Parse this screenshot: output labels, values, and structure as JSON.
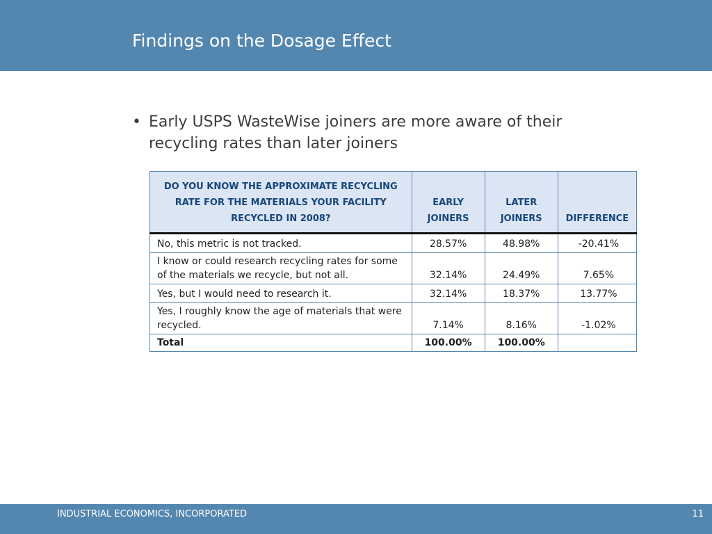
{
  "slide": {
    "title": "Findings on the Dosage Effect",
    "bullet_symbol": "•",
    "bullet_text": "Early USPS WasteWise joiners are more aware of their recycling rates than later joiners"
  },
  "table": {
    "headers": [
      "DO YOU KNOW THE APPROXIMATE RECYCLING RATE FOR THE MATERIALS YOUR FACILITY RECYCLED IN 2008?",
      "EARLY JOINERS",
      "LATER JOINERS",
      "DIFFERENCE"
    ],
    "rows": [
      {
        "label": "No, this metric is not tracked.",
        "early": "28.57%",
        "later": "48.98%",
        "difference": "-20.41%"
      },
      {
        "label": "I know or could research recycling rates for some of the materials we recycle, but not all.",
        "early": "32.14%",
        "later": "24.49%",
        "difference": "7.65%"
      },
      {
        "label": "Yes, but I would need to research it.",
        "early": "32.14%",
        "later": "18.37%",
        "difference": "13.77%"
      },
      {
        "label": "Yes, I roughly know the age of materials that were recycled.",
        "early": "7.14%",
        "later": "8.16%",
        "difference": "-1.02%"
      }
    ],
    "total": {
      "label": "Total",
      "early": "100.00%",
      "later": "100.00%",
      "difference": ""
    }
  },
  "footer": {
    "company": "INDUSTRIAL ECONOMICS, INCORPORATED",
    "page_number": "11"
  },
  "colors": {
    "banner": "#5487b0",
    "header_fill": "#dbe5f3",
    "header_text": "#17467a"
  }
}
